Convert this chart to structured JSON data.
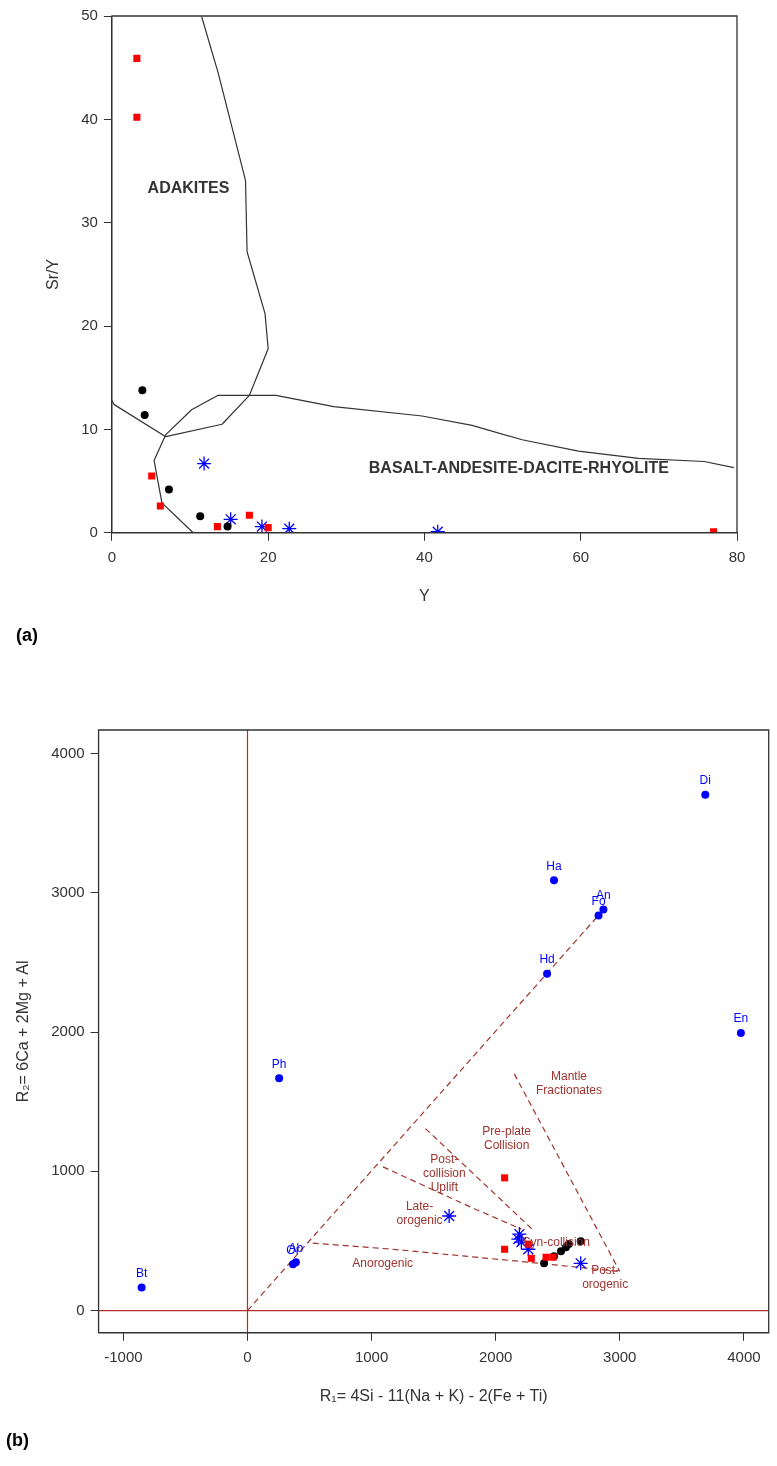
{
  "chart_data": [
    {
      "type": "scatter",
      "xlabel": "Y",
      "ylabel": "Sr/Y",
      "xlim": [
        0,
        80
      ],
      "ylim": [
        0,
        50
      ],
      "xticks": [
        0,
        20,
        40,
        60,
        80
      ],
      "yticks": [
        0,
        10,
        20,
        30,
        40,
        50
      ],
      "grid": false,
      "legend": false,
      "series": [
        {
          "type": "line",
          "color": "#333333",
          "marker": "none",
          "line_style": "solid",
          "x": [
            0,
            0.3,
            6.9,
            14.1,
            17.6,
            20,
            19.6,
            17.3,
            17.1,
            13.6,
            11.5
          ],
          "values": [
            12.8,
            12.4,
            9.3,
            10.5,
            13.3,
            17.8,
            21.2,
            27.2,
            34.1,
            44.5,
            49.9
          ]
        },
        {
          "type": "line",
          "color": "#333333",
          "marker": "none",
          "line_style": "solid",
          "x": [
            10.4,
            6.4,
            5.4,
            6.9,
            10.2,
            13.6,
            21,
            28.4,
            39.7,
            46.1,
            52.5,
            59.7,
            67.4,
            75.8,
            79.6
          ],
          "values": [
            0,
            2.9,
            7,
            9.5,
            11.9,
            13.3,
            13.3,
            12.2,
            11.3,
            10.4,
            9,
            7.9,
            7.2,
            6.9,
            6.3
          ]
        },
        {
          "color": "#ff0000",
          "marker": "square",
          "x": [
            3.2,
            3.2,
            5.1,
            6.2,
            13.5,
            17.6,
            20,
            77
          ],
          "values": [
            45.9,
            40.2,
            5.5,
            2.6,
            0.6,
            1.7,
            0.5,
            0.1
          ]
        },
        {
          "color": "#000000",
          "marker": "circle",
          "x": [
            3.9,
            4.2,
            7.3,
            11.3,
            14.8
          ],
          "values": [
            13.8,
            11.4,
            4.2,
            1.6,
            0.6
          ]
        },
        {
          "color": "#0000ff",
          "marker": "cross",
          "x": [
            11.8,
            15.2,
            19.2,
            22.7,
            41.7
          ],
          "values": [
            6.7,
            1.3,
            0.6,
            0.4,
            0.1
          ]
        }
      ],
      "annotations": [
        "ADAKITES",
        "BASALT-ANDESITE-DACITE-RHYOLITE",
        "(a)"
      ]
    },
    {
      "type": "scatter",
      "xlabel": "R₁= 4Si - 11(Na + K) - 2(Fe + Ti)",
      "ylabel": "R₂= 6Ca + 2Mg + Al",
      "xlim": [
        -1200,
        4200
      ],
      "ylim": [
        -160,
        4170
      ],
      "xticks": [
        -1000,
        0,
        1000,
        2000,
        3000,
        4000
      ],
      "yticks": [
        0,
        1000,
        2000,
        3000,
        4000
      ],
      "grid": false,
      "legend": false,
      "series": [
        {
          "type": "line",
          "color": "#b03030",
          "marker": "none",
          "line_style": "solid",
          "x": [
            0,
            0
          ],
          "values": [
            -160,
            4170
          ]
        },
        {
          "type": "line",
          "color": "#b03030",
          "marker": "none",
          "line_style": "solid",
          "x": [
            -1200,
            4200
          ],
          "values": [
            0,
            0
          ]
        },
        {
          "type": "line",
          "color": "#a0342f",
          "marker": "none",
          "line_style": "dashed",
          "x": [
            0,
            2830
          ],
          "values": [
            0,
            2840
          ]
        },
        {
          "type": "line",
          "color": "#a0342f",
          "marker": "none",
          "line_style": "dashed",
          "x": [
            526,
            1170,
            2230,
            3000
          ],
          "values": [
            484,
            440,
            350,
            280
          ]
        },
        {
          "type": "line",
          "color": "#a0342f",
          "marker": "none",
          "line_style": "dashed",
          "x": [
            1092,
            1833,
            2207
          ],
          "values": [
            1032,
            729,
            585
          ]
        },
        {
          "type": "line",
          "color": "#a0342f",
          "marker": "none",
          "line_style": "dashed",
          "x": [
            1434,
            2311
          ],
          "values": [
            1307,
            570
          ]
        },
        {
          "type": "line",
          "color": "#a0342f",
          "marker": "none",
          "line_style": "dashed",
          "x": [
            2150,
            3000
          ],
          "values": [
            1700,
            280
          ]
        },
        {
          "color": "#0000ff",
          "marker": "circle",
          "x": [
            -853,
            255,
            367,
            390,
            2470,
            2829,
            2868,
            2414,
            3689,
            3976
          ],
          "values": [
            166,
            1668,
            332,
            347,
            3090,
            2838,
            2881,
            2419,
            3704,
            1993
          ]
        },
        {
          "color": "#ff0000",
          "marker": "square",
          "x": [
            2072,
            2072,
            2287,
            2263,
            2406,
            2462
          ],
          "values": [
            953,
            440,
            375,
            477,
            383,
            383
          ]
        },
        {
          "color": "#000000",
          "marker": "circle",
          "x": [
            2390,
            2470,
            2526,
            2566,
            2590,
            2685
          ],
          "values": [
            339,
            390,
            426,
            455,
            477,
            498
          ]
        },
        {
          "color": "#0000ff",
          "marker": "cross",
          "x": [
            1625,
            2191,
            2183,
            2207,
            2263,
            2685
          ],
          "values": [
            679,
            549,
            513,
            491,
            440,
            339
          ]
        }
      ],
      "annotations": [
        {
          "text": "Bt",
          "x": -853,
          "y": 166
        },
        {
          "text": "Ph",
          "x": 255,
          "y": 1668
        },
        {
          "text": "Or",
          "x": 367,
          "y": 332
        },
        {
          "text": "Ab",
          "x": 390,
          "y": 347
        },
        {
          "text": "Ha",
          "x": 2470,
          "y": 3090
        },
        {
          "text": "Fo",
          "x": 2829,
          "y": 2838
        },
        {
          "text": "An",
          "x": 2868,
          "y": 2881
        },
        {
          "text": "Hd",
          "x": 2414,
          "y": 2419
        },
        {
          "text": "Di",
          "x": 3689,
          "y": 3704
        },
        {
          "text": "En",
          "x": 3976,
          "y": 1993
        },
        "Mantle\nFractionates",
        "Pre-plate\nCollision",
        "Post-\ncollision\nUplift",
        "Late-\norogenic",
        "Anorogenic",
        "Syn-collision",
        "Post-\norogenic",
        "(b)"
      ]
    }
  ]
}
